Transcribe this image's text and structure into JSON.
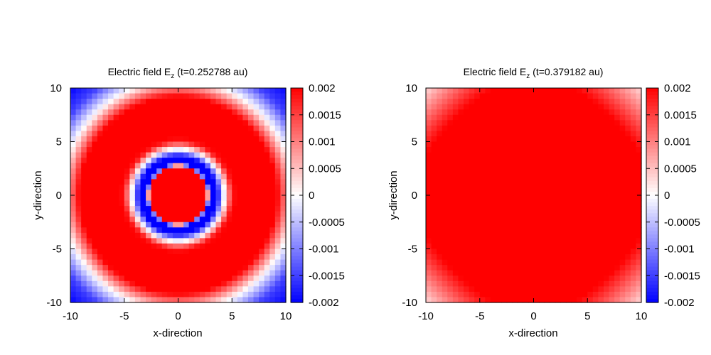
{
  "chart_data": [
    {
      "type": "heatmap",
      "title_main": "Electric field E",
      "title_sub": "z",
      "title_rest": " (t=0.252788 au)",
      "xlabel": "x-direction",
      "ylabel": "y-direction",
      "xlim": [
        -10,
        10
      ],
      "ylim": [
        -10,
        10
      ],
      "xticks": [
        "-10",
        "-5",
        "0",
        "5",
        "10"
      ],
      "yticks": [
        "10",
        "5",
        "0",
        "-5",
        "-10"
      ],
      "colorbar": {
        "range": [
          -0.002,
          0.002
        ],
        "ticks": [
          "0.002",
          "0.0015",
          "0.001",
          "0.0005",
          "0",
          "-0.0005",
          "-0.001",
          "-0.0015",
          "-0.002"
        ],
        "low_color": "#0000ff",
        "mid_color": "#ffffff",
        "high_color": "#ff0000"
      },
      "grid_resolution": 40,
      "pattern": {
        "kind": "radial",
        "r_points": [
          0,
          2.6,
          2.9,
          3.6,
          4.3,
          5.0,
          5.8,
          9.0,
          10.8,
          12.5,
          14.2
        ],
        "values": [
          0.004,
          0.004,
          -0.002,
          -0.002,
          0.0,
          0.0018,
          0.0022,
          0.0022,
          0.0,
          -0.0015,
          -0.002
        ]
      }
    },
    {
      "type": "heatmap",
      "title_main": "Electric field E",
      "title_sub": "z",
      "title_rest": " (t=0.379182 au)",
      "xlabel": "x-direction",
      "ylabel": "y-direction",
      "xlim": [
        -10,
        10
      ],
      "ylim": [
        -10,
        10
      ],
      "xticks": [
        "-10",
        "-5",
        "0",
        "5",
        "10"
      ],
      "yticks": [
        "10",
        "5",
        "0",
        "-5",
        "-10"
      ],
      "colorbar": {
        "range": [
          -0.002,
          0.002
        ],
        "ticks": [
          "0.002",
          "0.0015",
          "0.001",
          "0.0005",
          "0",
          "-0.0005",
          "-0.001",
          "-0.0015",
          "-0.002"
        ],
        "low_color": "#0000ff",
        "mid_color": "#ffffff",
        "high_color": "#ff0000"
      },
      "grid_resolution": 40,
      "pattern": {
        "kind": "mode",
        "amplitude": 0.002,
        "offset": 0.0003,
        "period": 20
      }
    }
  ]
}
